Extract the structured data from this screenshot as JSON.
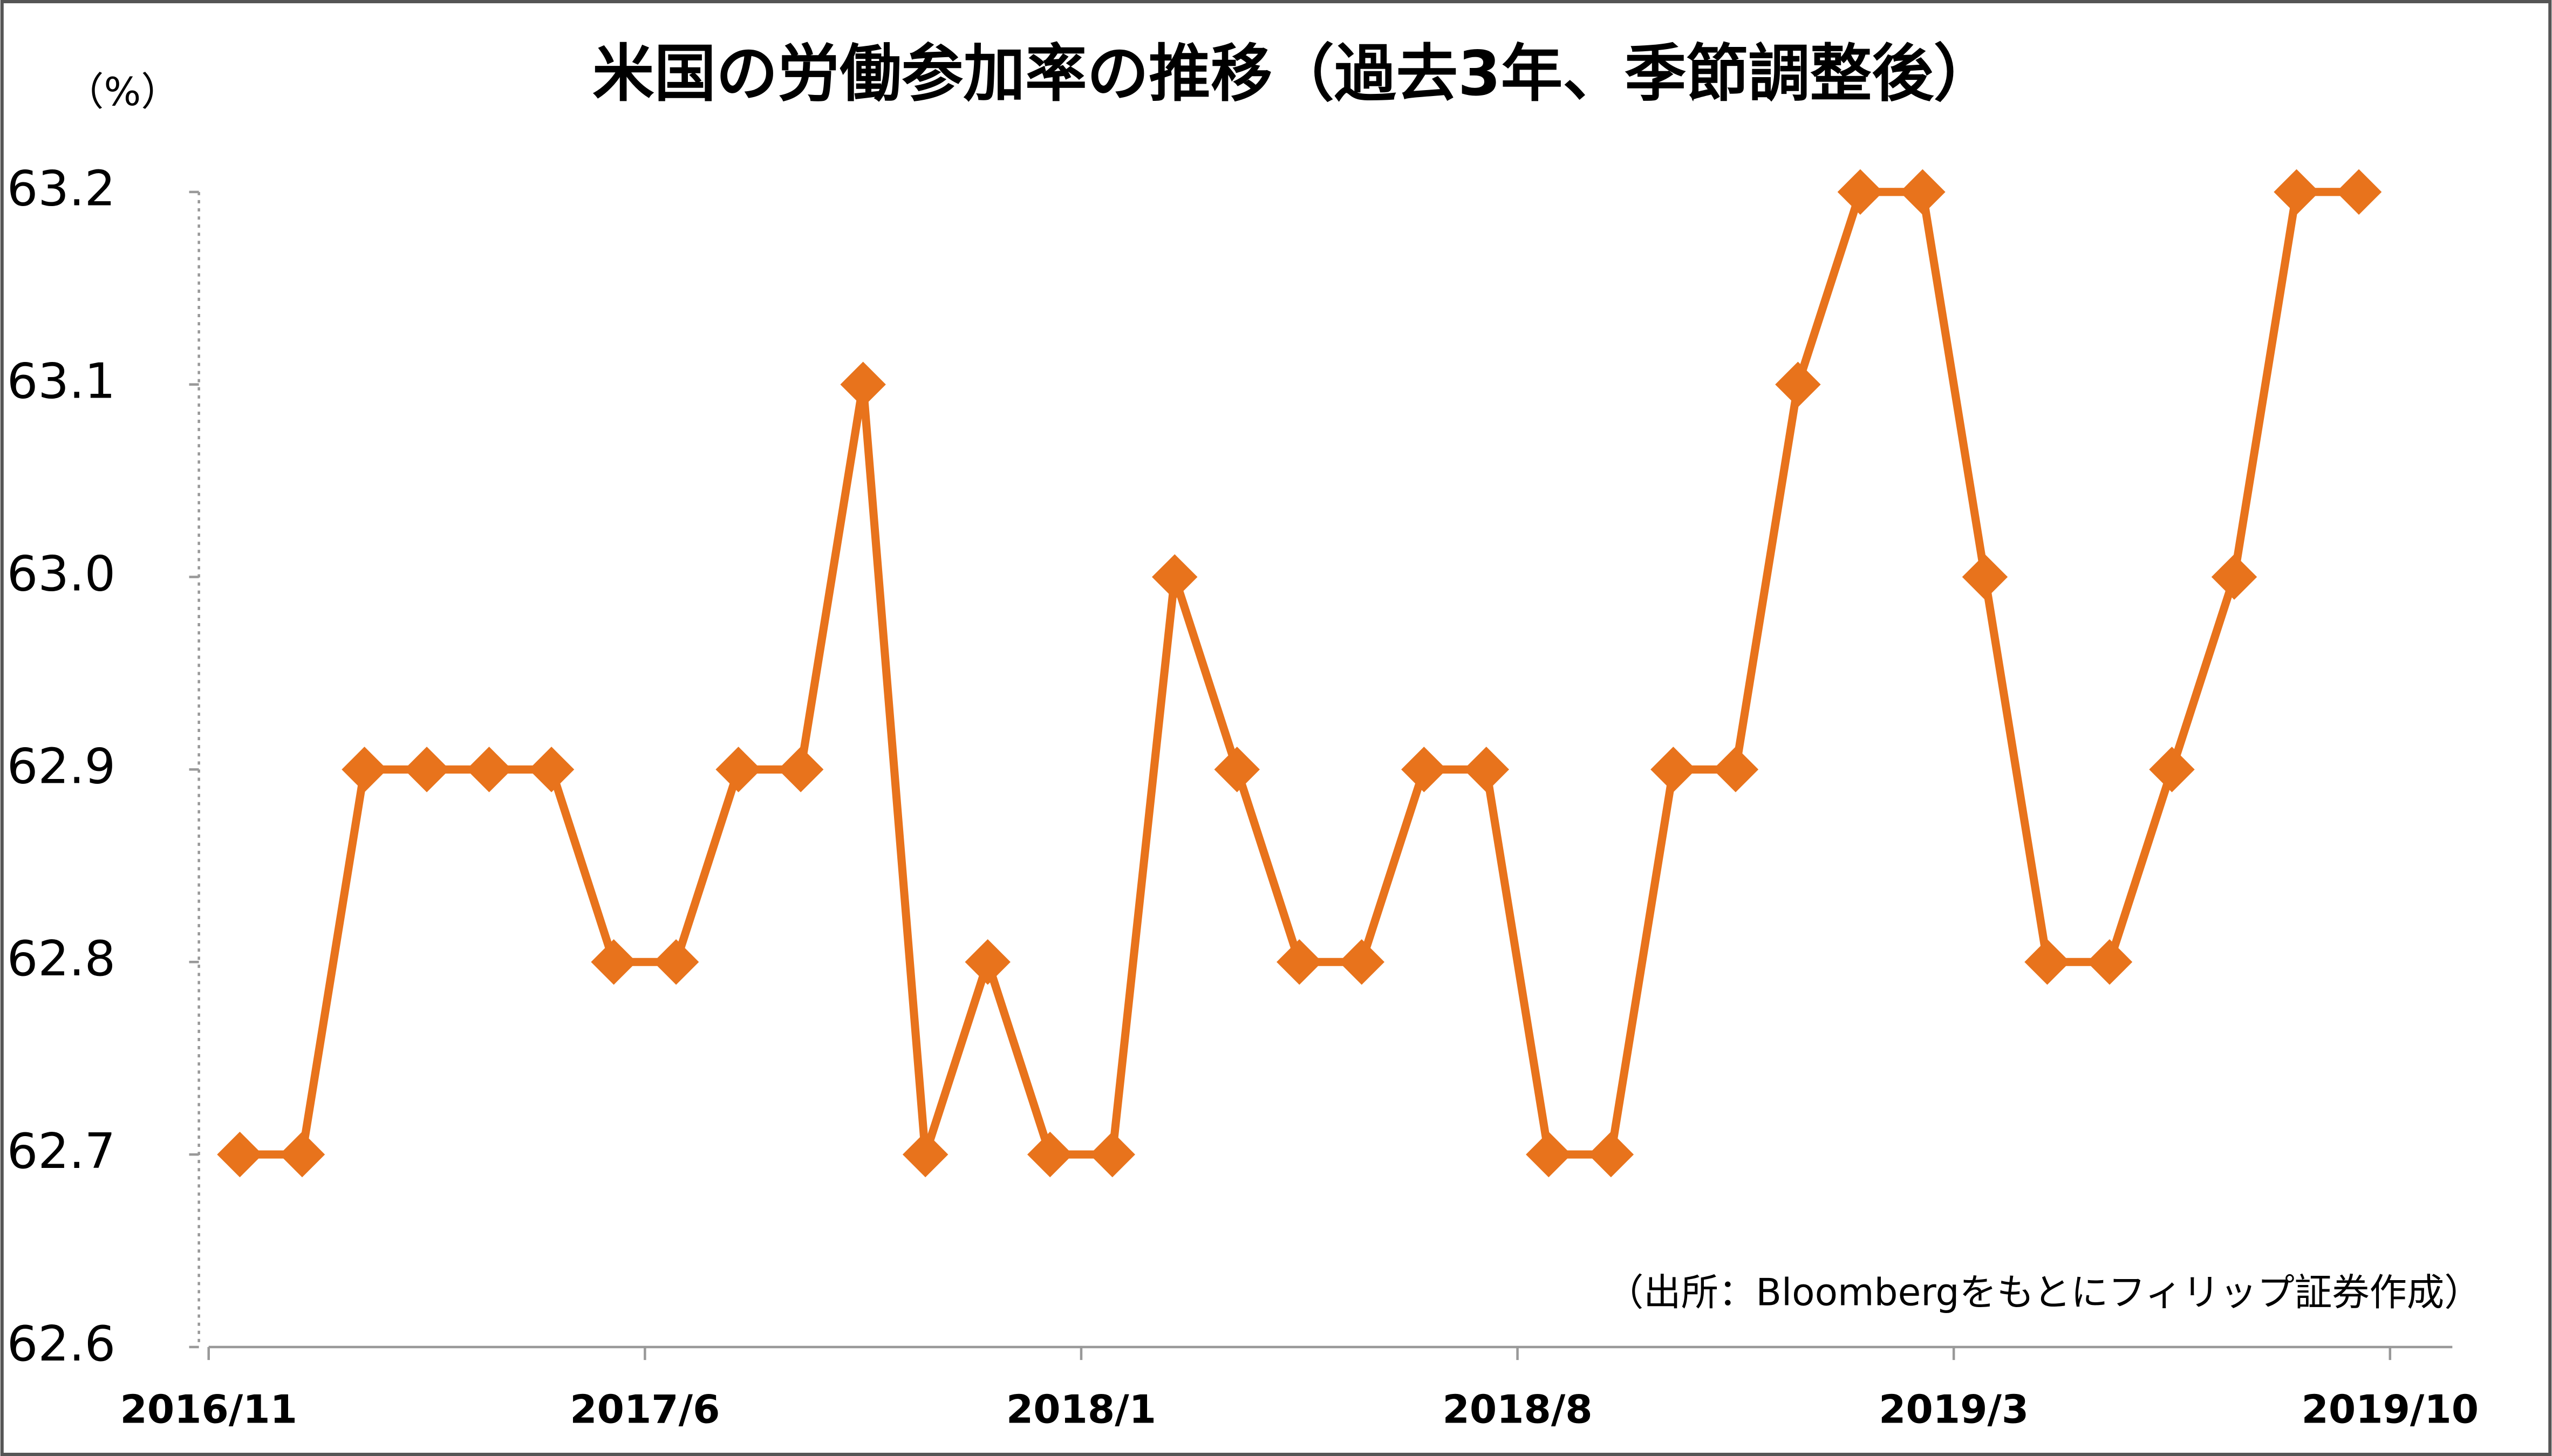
{
  "chart_data": {
    "type": "line",
    "title": "米国の労働参加率の推移（過去3年、季節調整後）",
    "y_label": "（%）",
    "note": "（出所：Bloombergをもとにフィリップ証券作成）",
    "categories": [
      "2016/11",
      null,
      null,
      null,
      null,
      null,
      null,
      "2017/6",
      null,
      null,
      null,
      null,
      null,
      null,
      "2018/1",
      null,
      null,
      null,
      null,
      null,
      null,
      "2018/8",
      null,
      null,
      null,
      null,
      null,
      null,
      "2019/3",
      null,
      null,
      null,
      null,
      null,
      null,
      "2019/10"
    ],
    "values": [
      62.7,
      62.7,
      62.9,
      62.9,
      62.9,
      62.9,
      62.8,
      62.8,
      62.9,
      62.9,
      63.1,
      62.7,
      62.8,
      62.7,
      62.7,
      63.0,
      62.9,
      62.8,
      62.8,
      62.9,
      62.9,
      62.7,
      62.7,
      62.9,
      62.9,
      63.1,
      63.2,
      63.2,
      63.0,
      62.8,
      62.8,
      62.9,
      63.0,
      63.2,
      63.2,
      null
    ],
    "color": "#e8731c",
    "ylim": [
      62.6,
      63.2
    ],
    "yticks": [
      62.6,
      62.7,
      62.8,
      62.9,
      {
        "value": 63,
        "label": "63.0"
      },
      63.1,
      63.2
    ],
    "grid": false
  }
}
